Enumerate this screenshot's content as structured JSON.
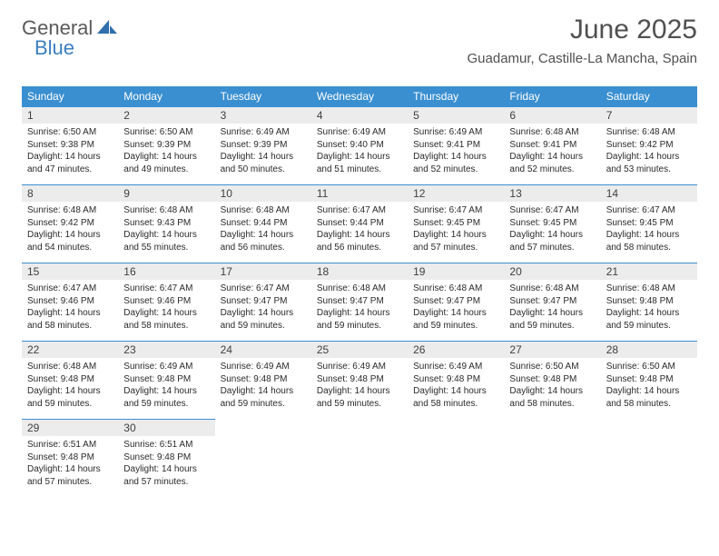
{
  "logo": {
    "text1": "General",
    "text2": "Blue"
  },
  "header": {
    "title": "June 2025",
    "location": "Guadamur, Castille-La Mancha, Spain"
  },
  "colors": {
    "header_bg": "#3a8fd0",
    "header_text": "#ffffff",
    "daynum_bg": "#ececec",
    "border": "#3a8fd0",
    "logo_gray": "#5a5a5a",
    "logo_blue": "#3a7fbf"
  },
  "weekdays": [
    "Sunday",
    "Monday",
    "Tuesday",
    "Wednesday",
    "Thursday",
    "Friday",
    "Saturday"
  ],
  "weeks": [
    [
      {
        "num": "1",
        "sunrise": "Sunrise: 6:50 AM",
        "sunset": "Sunset: 9:38 PM",
        "day1": "Daylight: 14 hours",
        "day2": "and 47 minutes."
      },
      {
        "num": "2",
        "sunrise": "Sunrise: 6:50 AM",
        "sunset": "Sunset: 9:39 PM",
        "day1": "Daylight: 14 hours",
        "day2": "and 49 minutes."
      },
      {
        "num": "3",
        "sunrise": "Sunrise: 6:49 AM",
        "sunset": "Sunset: 9:39 PM",
        "day1": "Daylight: 14 hours",
        "day2": "and 50 minutes."
      },
      {
        "num": "4",
        "sunrise": "Sunrise: 6:49 AM",
        "sunset": "Sunset: 9:40 PM",
        "day1": "Daylight: 14 hours",
        "day2": "and 51 minutes."
      },
      {
        "num": "5",
        "sunrise": "Sunrise: 6:49 AM",
        "sunset": "Sunset: 9:41 PM",
        "day1": "Daylight: 14 hours",
        "day2": "and 52 minutes."
      },
      {
        "num": "6",
        "sunrise": "Sunrise: 6:48 AM",
        "sunset": "Sunset: 9:41 PM",
        "day1": "Daylight: 14 hours",
        "day2": "and 52 minutes."
      },
      {
        "num": "7",
        "sunrise": "Sunrise: 6:48 AM",
        "sunset": "Sunset: 9:42 PM",
        "day1": "Daylight: 14 hours",
        "day2": "and 53 minutes."
      }
    ],
    [
      {
        "num": "8",
        "sunrise": "Sunrise: 6:48 AM",
        "sunset": "Sunset: 9:42 PM",
        "day1": "Daylight: 14 hours",
        "day2": "and 54 minutes."
      },
      {
        "num": "9",
        "sunrise": "Sunrise: 6:48 AM",
        "sunset": "Sunset: 9:43 PM",
        "day1": "Daylight: 14 hours",
        "day2": "and 55 minutes."
      },
      {
        "num": "10",
        "sunrise": "Sunrise: 6:48 AM",
        "sunset": "Sunset: 9:44 PM",
        "day1": "Daylight: 14 hours",
        "day2": "and 56 minutes."
      },
      {
        "num": "11",
        "sunrise": "Sunrise: 6:47 AM",
        "sunset": "Sunset: 9:44 PM",
        "day1": "Daylight: 14 hours",
        "day2": "and 56 minutes."
      },
      {
        "num": "12",
        "sunrise": "Sunrise: 6:47 AM",
        "sunset": "Sunset: 9:45 PM",
        "day1": "Daylight: 14 hours",
        "day2": "and 57 minutes."
      },
      {
        "num": "13",
        "sunrise": "Sunrise: 6:47 AM",
        "sunset": "Sunset: 9:45 PM",
        "day1": "Daylight: 14 hours",
        "day2": "and 57 minutes."
      },
      {
        "num": "14",
        "sunrise": "Sunrise: 6:47 AM",
        "sunset": "Sunset: 9:45 PM",
        "day1": "Daylight: 14 hours",
        "day2": "and 58 minutes."
      }
    ],
    [
      {
        "num": "15",
        "sunrise": "Sunrise: 6:47 AM",
        "sunset": "Sunset: 9:46 PM",
        "day1": "Daylight: 14 hours",
        "day2": "and 58 minutes."
      },
      {
        "num": "16",
        "sunrise": "Sunrise: 6:47 AM",
        "sunset": "Sunset: 9:46 PM",
        "day1": "Daylight: 14 hours",
        "day2": "and 58 minutes."
      },
      {
        "num": "17",
        "sunrise": "Sunrise: 6:47 AM",
        "sunset": "Sunset: 9:47 PM",
        "day1": "Daylight: 14 hours",
        "day2": "and 59 minutes."
      },
      {
        "num": "18",
        "sunrise": "Sunrise: 6:48 AM",
        "sunset": "Sunset: 9:47 PM",
        "day1": "Daylight: 14 hours",
        "day2": "and 59 minutes."
      },
      {
        "num": "19",
        "sunrise": "Sunrise: 6:48 AM",
        "sunset": "Sunset: 9:47 PM",
        "day1": "Daylight: 14 hours",
        "day2": "and 59 minutes."
      },
      {
        "num": "20",
        "sunrise": "Sunrise: 6:48 AM",
        "sunset": "Sunset: 9:47 PM",
        "day1": "Daylight: 14 hours",
        "day2": "and 59 minutes."
      },
      {
        "num": "21",
        "sunrise": "Sunrise: 6:48 AM",
        "sunset": "Sunset: 9:48 PM",
        "day1": "Daylight: 14 hours",
        "day2": "and 59 minutes."
      }
    ],
    [
      {
        "num": "22",
        "sunrise": "Sunrise: 6:48 AM",
        "sunset": "Sunset: 9:48 PM",
        "day1": "Daylight: 14 hours",
        "day2": "and 59 minutes."
      },
      {
        "num": "23",
        "sunrise": "Sunrise: 6:49 AM",
        "sunset": "Sunset: 9:48 PM",
        "day1": "Daylight: 14 hours",
        "day2": "and 59 minutes."
      },
      {
        "num": "24",
        "sunrise": "Sunrise: 6:49 AM",
        "sunset": "Sunset: 9:48 PM",
        "day1": "Daylight: 14 hours",
        "day2": "and 59 minutes."
      },
      {
        "num": "25",
        "sunrise": "Sunrise: 6:49 AM",
        "sunset": "Sunset: 9:48 PM",
        "day1": "Daylight: 14 hours",
        "day2": "and 59 minutes."
      },
      {
        "num": "26",
        "sunrise": "Sunrise: 6:49 AM",
        "sunset": "Sunset: 9:48 PM",
        "day1": "Daylight: 14 hours",
        "day2": "and 58 minutes."
      },
      {
        "num": "27",
        "sunrise": "Sunrise: 6:50 AM",
        "sunset": "Sunset: 9:48 PM",
        "day1": "Daylight: 14 hours",
        "day2": "and 58 minutes."
      },
      {
        "num": "28",
        "sunrise": "Sunrise: 6:50 AM",
        "sunset": "Sunset: 9:48 PM",
        "day1": "Daylight: 14 hours",
        "day2": "and 58 minutes."
      }
    ],
    [
      {
        "num": "29",
        "sunrise": "Sunrise: 6:51 AM",
        "sunset": "Sunset: 9:48 PM",
        "day1": "Daylight: 14 hours",
        "day2": "and 57 minutes."
      },
      {
        "num": "30",
        "sunrise": "Sunrise: 6:51 AM",
        "sunset": "Sunset: 9:48 PM",
        "day1": "Daylight: 14 hours",
        "day2": "and 57 minutes."
      },
      null,
      null,
      null,
      null,
      null
    ]
  ]
}
